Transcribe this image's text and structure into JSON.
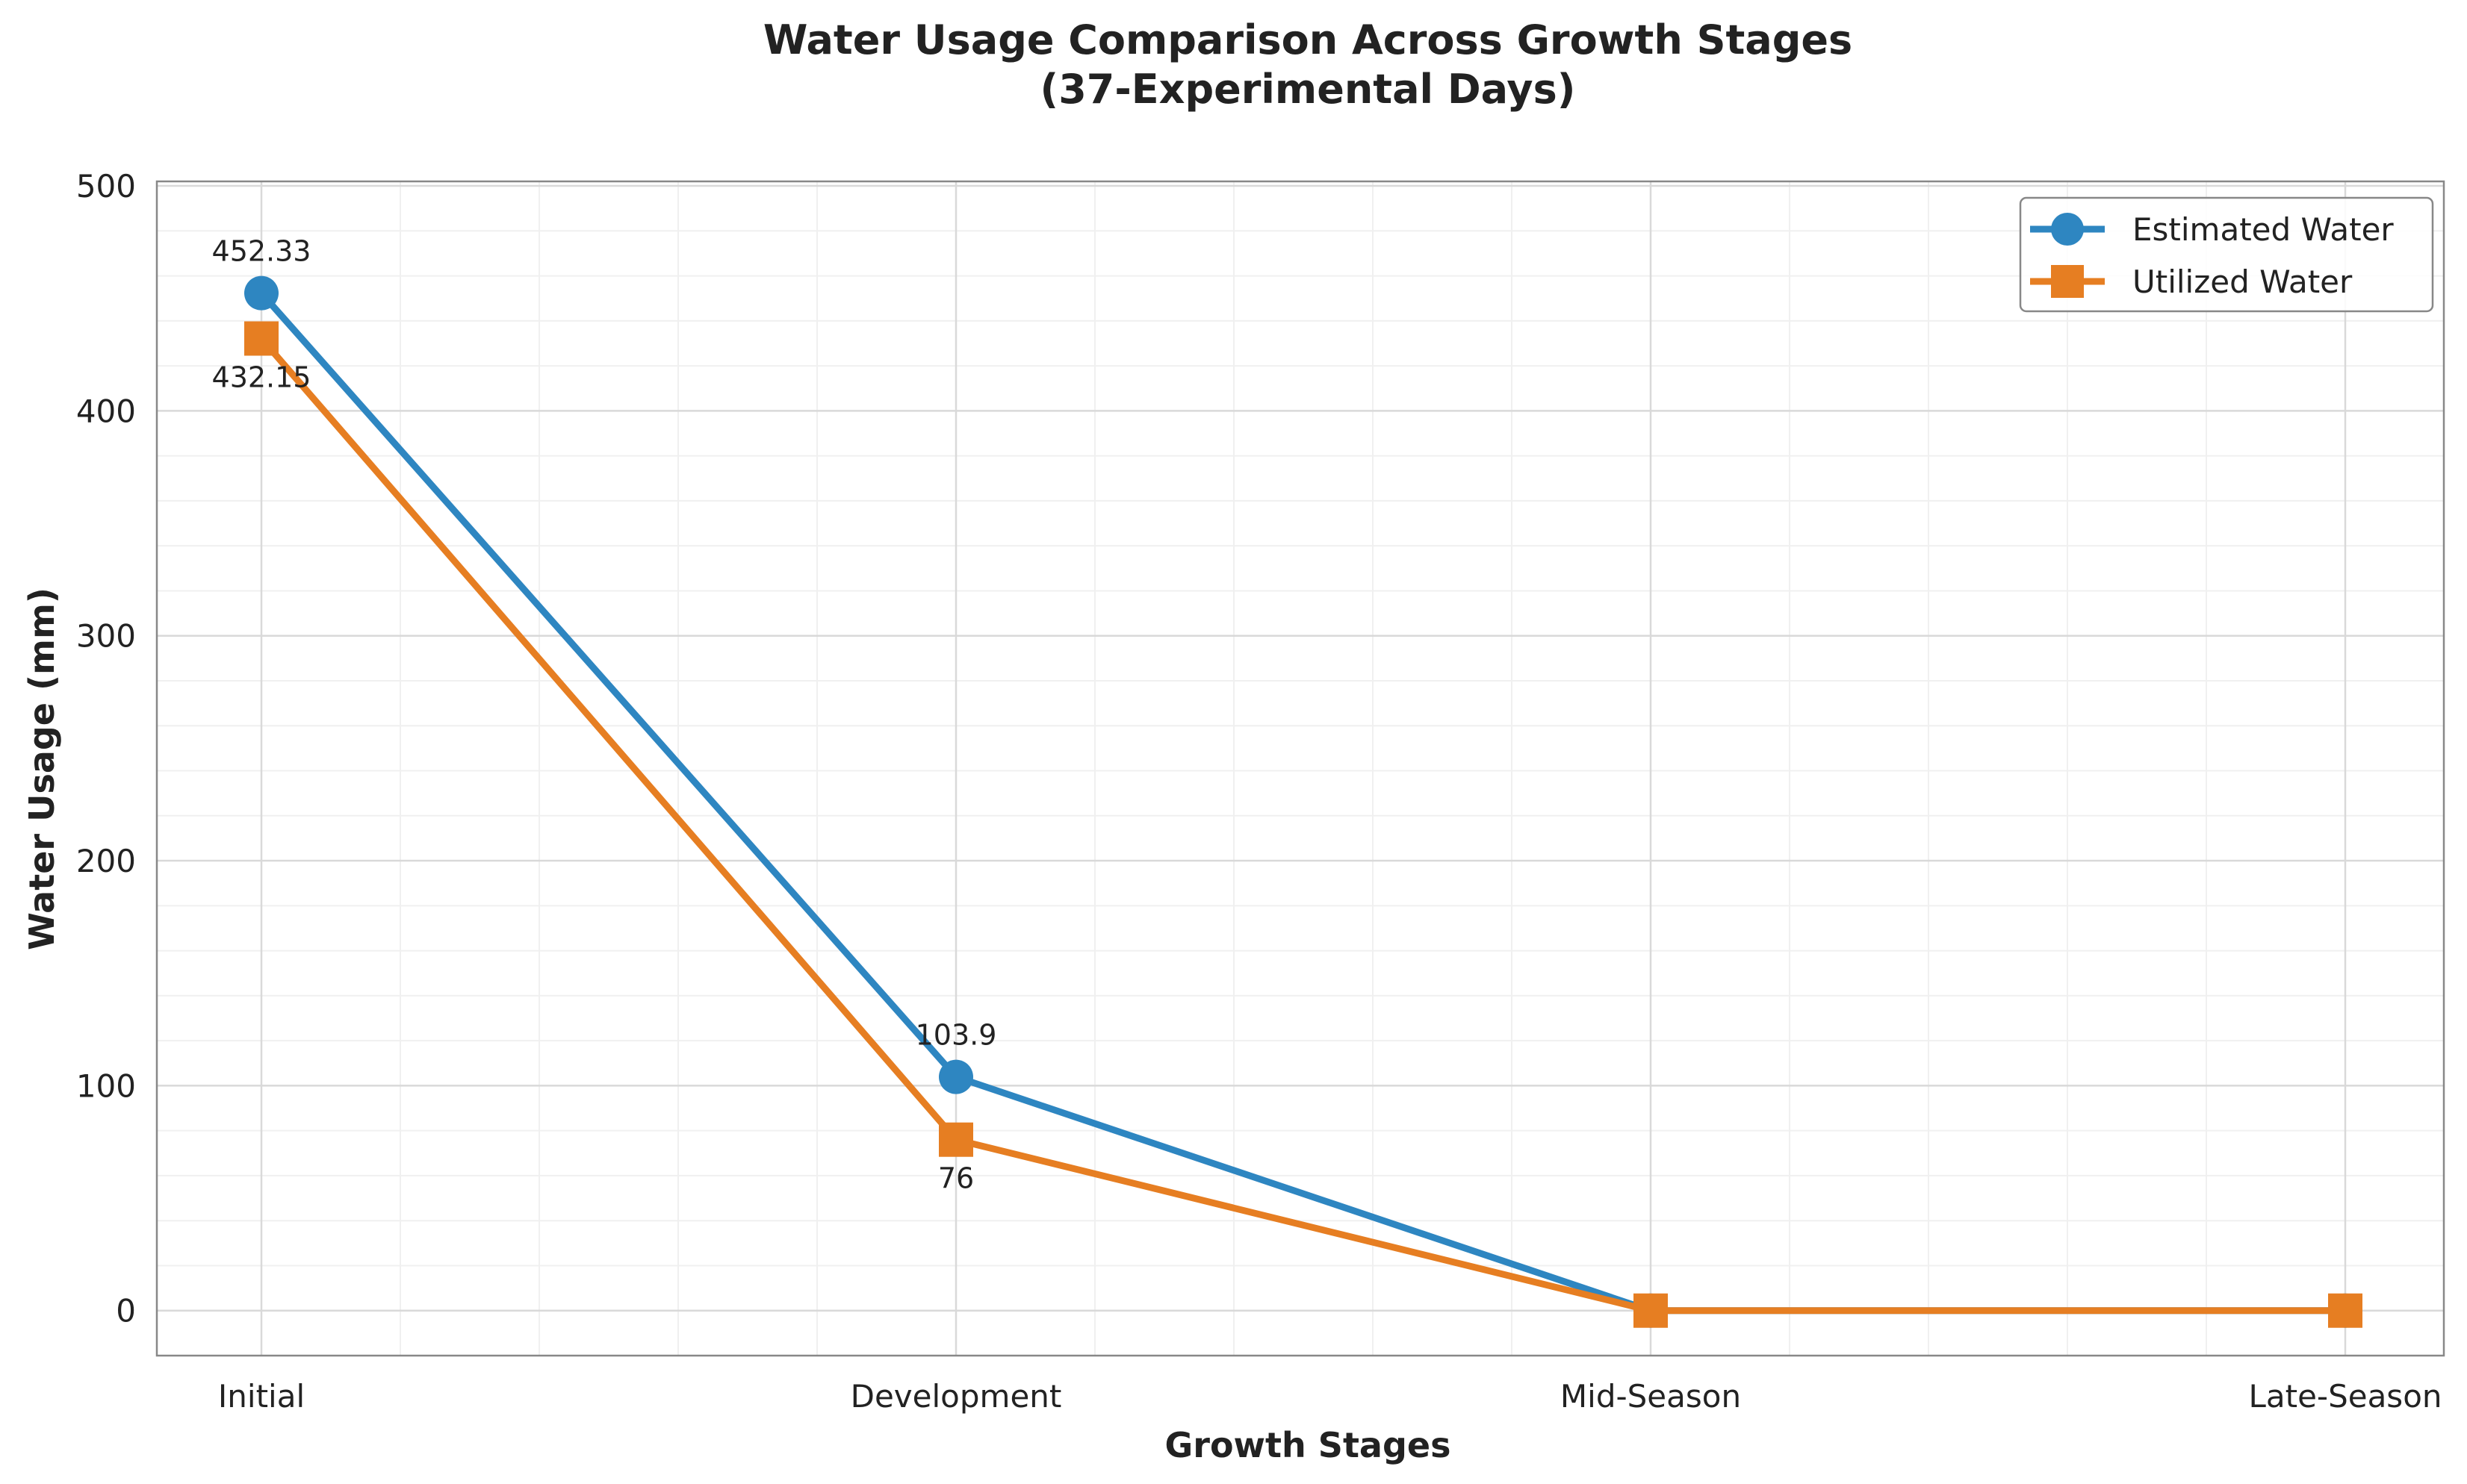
{
  "chart_data": {
    "type": "line",
    "title_line1": "Water Usage Comparison Across Growth Stages",
    "title_line2": "(37-Experimental Days)",
    "xlabel": "Growth Stages",
    "ylabel": "Water Usage (mm)",
    "categories": [
      "Initial",
      "Development",
      "Mid-Season",
      "Late-Season"
    ],
    "ylim": [
      -20,
      502
    ],
    "yticks": [
      0,
      100,
      200,
      300,
      400,
      500
    ],
    "grid": true,
    "legend_position": "top-right",
    "series": [
      {
        "name": "Estimated Water",
        "values": [
          452.33,
          103.9,
          0,
          0
        ],
        "color": "#2e86c1",
        "marker": "circle",
        "labels": [
          "452.33",
          "103.9",
          "",
          ""
        ]
      },
      {
        "name": "Utilized Water",
        "values": [
          432.15,
          76,
          0,
          0
        ],
        "color": "#e67e22",
        "marker": "square",
        "labels": [
          "432.15",
          "76",
          "",
          ""
        ]
      }
    ]
  }
}
